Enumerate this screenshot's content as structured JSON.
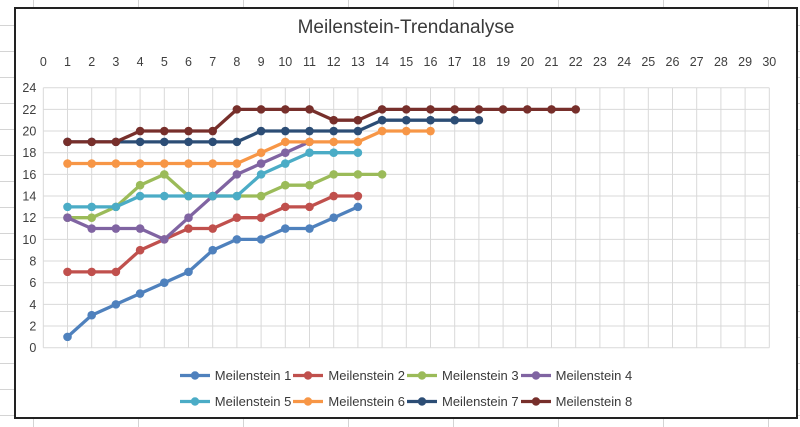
{
  "chart_data": {
    "type": "line",
    "title": "Meilenstein-Trendanalyse",
    "xlabel": "",
    "ylabel": "",
    "xlim": [
      0,
      30
    ],
    "ylim": [
      0,
      24
    ],
    "x_ticks": [
      0,
      1,
      2,
      3,
      4,
      5,
      6,
      7,
      8,
      9,
      10,
      11,
      12,
      13,
      14,
      15,
      16,
      17,
      18,
      19,
      20,
      21,
      22,
      23,
      24,
      25,
      26,
      27,
      28,
      29,
      30
    ],
    "y_ticks": [
      24,
      22,
      20,
      18,
      16,
      14,
      12,
      10,
      8,
      6,
      4,
      2,
      0
    ],
    "x_tick_side": "top",
    "grid": true,
    "gridline_color": "#d9d9d9",
    "axis_text_color": "#3f3f3f",
    "legend_position": "bottom",
    "legend_rows": 2,
    "x_start": 1,
    "series": [
      {
        "name": "Meilenstein 1",
        "color": "#4F81BD",
        "values": [
          1,
          3,
          4,
          5,
          6,
          7,
          9,
          10,
          10,
          11,
          11,
          12,
          13
        ]
      },
      {
        "name": "Meilenstein 2",
        "color": "#C0504D",
        "values": [
          7,
          7,
          7,
          9,
          10,
          11,
          11,
          12,
          12,
          13,
          13,
          14,
          14
        ]
      },
      {
        "name": "Meilenstein 3",
        "color": "#9BBB59",
        "values": [
          12,
          12,
          13,
          15,
          16,
          14,
          14,
          14,
          14,
          15,
          15,
          16,
          16,
          16
        ]
      },
      {
        "name": "Meilenstein 4",
        "color": "#8064A2",
        "values": [
          12,
          11,
          11,
          11,
          10,
          12,
          14,
          16,
          17,
          18,
          19
        ]
      },
      {
        "name": "Meilenstein 5",
        "color": "#4BACC6",
        "values": [
          13,
          13,
          13,
          14,
          14,
          14,
          14,
          14,
          16,
          17,
          18,
          18,
          18
        ]
      },
      {
        "name": "Meilenstein 6",
        "color": "#F79646",
        "values": [
          17,
          17,
          17,
          17,
          17,
          17,
          17,
          17,
          18,
          19,
          19,
          19,
          19,
          20,
          20,
          20
        ]
      },
      {
        "name": "Meilenstein 7",
        "color": "#2C4D75",
        "values": [
          19,
          19,
          19,
          19,
          19,
          19,
          19,
          19,
          20,
          20,
          20,
          20,
          20,
          21,
          21,
          21,
          21,
          21
        ]
      },
      {
        "name": "Meilenstein 8",
        "color": "#772F2B",
        "values": [
          19,
          19,
          19,
          20,
          20,
          20,
          20,
          22,
          22,
          22,
          22,
          21,
          21,
          22,
          22,
          22,
          22,
          22,
          22,
          22,
          22,
          22
        ]
      }
    ]
  }
}
